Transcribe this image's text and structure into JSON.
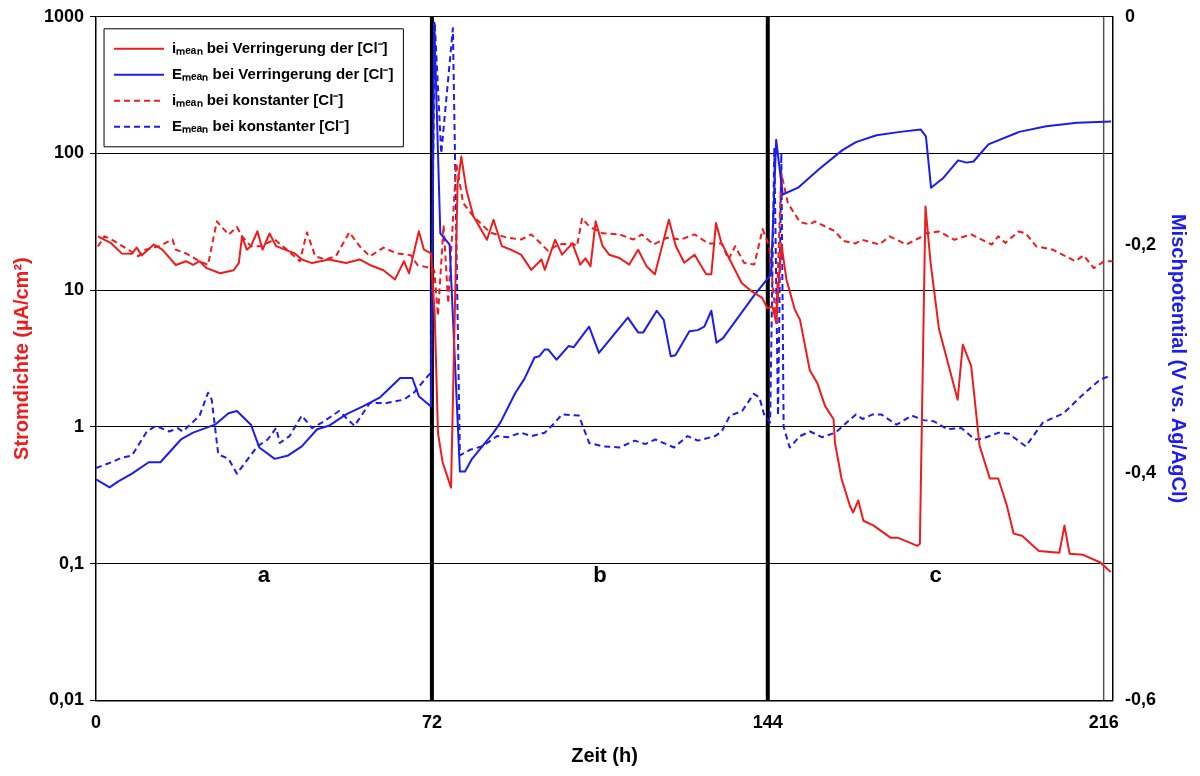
{
  "chart_data": {
    "type": "line",
    "xlabel": "Zeit (h)",
    "ylabel": "Stromdichte (µA/cm²)",
    "y2label": "Mischpotential (V vs. Ag/AgCl)",
    "xlim": [
      0,
      218
    ],
    "xticks": [
      0,
      72,
      144,
      216
    ],
    "ylim": [
      0.01,
      1000
    ],
    "yticks": [
      {
        "value": 0.01,
        "label": "0,01"
      },
      {
        "value": 0.1,
        "label": "0,1"
      },
      1,
      10,
      100,
      1000
    ],
    "y2lim": [
      -0.6,
      0
    ],
    "y2ticks": [
      {
        "value": -0.6,
        "label": "-0,6"
      },
      {
        "value": -0.4,
        "label": "-0,4"
      },
      {
        "value": -0.2,
        "label": "-0,2"
      },
      0
    ],
    "log": "y",
    "grid": "y",
    "legend": "top left",
    "ref_lines": [
      {
        "axis": "x",
        "value": 72,
        "color": "#000000"
      },
      {
        "axis": "x",
        "value": 144,
        "color": "#000000"
      },
      {
        "axis": "x",
        "value": 216,
        "color": "#555555"
      }
    ],
    "annotations": [
      "a",
      "b",
      "c"
    ],
    "series": [
      {
        "name": "iₘₑₐₙ bei Verringerung der [Cl⁻]",
        "color": "#ee1c1c",
        "line_style": "solid",
        "x": [
          0.4,
          3.3,
          5.5,
          7.7,
          8.7,
          9.8,
          12.4,
          14.2,
          17.1,
          19.3,
          20.8,
          22.2,
          23.7,
          26.6,
          29.5,
          30.6,
          31.3,
          32.3,
          33.2,
          34.6,
          35.7,
          37.2,
          38.6,
          40.5,
          42.6,
          44.1,
          46.3,
          49.9,
          53.6,
          56.5,
          58.7,
          61.6,
          64.1,
          66,
          67.1,
          69.2,
          70.3,
          71.8,
          72.6,
          73.3,
          74.3,
          76.1,
          77.5,
          78.3,
          79.4,
          80.9,
          83.8,
          85.2,
          87.0,
          88.9,
          91.1,
          93.3,
          95.5,
          96.2,
          98.4,
          99.9,
          102.1,
          103.8,
          104.9,
          106.0,
          107.1,
          108.6,
          110.0,
          112.2,
          114.3,
          116.2,
          118.0,
          119.8,
          122.8,
          124.3,
          126.1,
          128.3,
          130.8,
          131.9,
          132.9,
          134.0,
          136.2,
          138.4,
          140.6,
          142.8,
          143.9,
          145.0,
          145.8,
          146.9,
          148.0,
          149.8,
          150.9,
          153.0,
          154.6,
          156.3,
          158.1,
          158.4,
          159.8,
          161.6,
          162.3,
          163.4,
          164.5,
          166.7,
          170.3,
          171.8,
          176.1,
          176.6,
          177.8,
          178.9,
          180.7,
          184.7,
          185.8,
          187.6,
          189.4,
          191.6,
          193.4,
          195.2,
          196.7,
          198.5,
          202.1,
          206.5,
          207.6,
          208.7,
          211.6,
          215.3,
          217.5
        ],
        "values": [
          24.8,
          22,
          18.6,
          18.5,
          20.5,
          18,
          21.6,
          19.8,
          15.3,
          16.3,
          15.3,
          16.3,
          14.5,
          13.3,
          14,
          15.8,
          24.8,
          19.8,
          21,
          27,
          19.8,
          26,
          21,
          19.8,
          18.6,
          16.8,
          15.8,
          16.8,
          15.8,
          16.8,
          15.3,
          14,
          12,
          16.3,
          13.3,
          27,
          19.8,
          18.6,
          6.5,
          0.9,
          0.55,
          0.36,
          60,
          95,
          54,
          34.7,
          23.4,
          32.8,
          21,
          19.8,
          18.2,
          14.1,
          16.8,
          14.1,
          23.4,
          18.2,
          22,
          15.4,
          17.1,
          15,
          31.9,
          21,
          18.2,
          17.2,
          15.4,
          19.8,
          15,
          13.1,
          32.8,
          21,
          15.9,
          18.2,
          13.1,
          13.1,
          31,
          22.5,
          15.9,
          11.3,
          9.8,
          8.8,
          7.4,
          7.6,
          5.8,
          22,
          12,
          7.2,
          6.1,
          2.6,
          2.1,
          1.42,
          1.14,
          0.77,
          0.42,
          0.265,
          0.237,
          0.29,
          0.206,
          0.19,
          0.155,
          0.155,
          0.135,
          0.14,
          41,
          15.9,
          5.2,
          1.58,
          4.0,
          2.8,
          0.73,
          0.42,
          0.42,
          0.27,
          0.166,
          0.16,
          0.124,
          0.12,
          0.19,
          0.118,
          0.116,
          0.102,
          0.087
        ]
      },
      {
        "name": "Eₘₑₐₙ bei Verringerung der [Cl⁻]",
        "color": "#1c1cee",
        "line_style": "solid",
        "axis": "y2",
        "x": [
          0,
          2.9,
          4.7,
          7.7,
          11.3,
          13.8,
          18.2,
          20.8,
          25.5,
          28.4,
          30.2,
          33.2,
          35,
          38.3,
          41.2,
          44.1,
          47.4,
          49.9,
          53.6,
          57.2,
          60.9,
          65.2,
          67.8,
          69.2,
          71.8,
          72.5,
          73.8,
          75.8,
          78,
          79.1,
          80.6,
          85.2,
          86.7,
          89.9,
          91.8,
          94,
          95,
          96.2,
          96.9,
          98.7,
          101.3,
          102.4,
          105.7,
          107.8,
          110.4,
          114,
          116.2,
          117.3,
          120.2,
          121.7,
          123.2,
          124.2,
          127.2,
          129,
          130.4,
          131.9,
          133,
          134.4,
          141,
          144.7,
          145.8,
          147.2,
          150.5,
          154.9,
          160,
          162.9,
          167.3,
          172.4,
          176.8,
          177.9,
          179,
          181.5,
          184.8,
          186.6,
          188.1,
          191.3,
          197.9,
          203.7,
          210.3,
          217.6
        ],
        "values": [
          -0.406,
          -0.413,
          -0.408,
          -0.401,
          -0.391,
          -0.391,
          -0.371,
          -0.365,
          -0.358,
          -0.348,
          -0.346,
          -0.358,
          -0.378,
          -0.388,
          -0.385,
          -0.377,
          -0.362,
          -0.359,
          -0.349,
          -0.342,
          -0.334,
          -0.317,
          -0.317,
          -0.333,
          -0.342,
          -0.005,
          -0.19,
          -0.2,
          -0.399,
          -0.399,
          -0.388,
          -0.365,
          -0.356,
          -0.33,
          -0.318,
          -0.299,
          -0.298,
          -0.292,
          -0.292,
          -0.301,
          -0.289,
          -0.29,
          -0.272,
          -0.295,
          -0.282,
          -0.264,
          -0.277,
          -0.277,
          -0.258,
          -0.266,
          -0.298,
          -0.297,
          -0.276,
          -0.275,
          -0.272,
          -0.258,
          -0.286,
          -0.282,
          -0.245,
          -0.226,
          -0.108,
          -0.156,
          -0.15,
          -0.134,
          -0.117,
          -0.11,
          -0.104,
          -0.101,
          -0.099,
          -0.105,
          -0.15,
          -0.142,
          -0.126,
          -0.128,
          -0.127,
          -0.112,
          -0.101,
          -0.096,
          -0.093,
          -0.092
        ]
      },
      {
        "name": "iₘₑₐₙ bei konstanter [Cl⁻]",
        "color": "#ee1c1c",
        "line_style": "dashed",
        "x": [
          0.4,
          1.8,
          3.3,
          6.2,
          9.1,
          10.6,
          13.5,
          16.4,
          17.1,
          19.3,
          21.5,
          24.0,
          25.9,
          28.4,
          30.2,
          31.3,
          33.2,
          35.3,
          38.3,
          41.2,
          43.7,
          45.2,
          47,
          49.2,
          51.4,
          54.3,
          56.5,
          58.7,
          61.6,
          64.5,
          67.5,
          68.9,
          71.8,
          72.5,
          73.3,
          74.5,
          75.5,
          77.2,
          78.7,
          80.9,
          84.5,
          88.2,
          91.1,
          93.3,
          94.8,
          96.9,
          99.1,
          102.1,
          103.1,
          104.2,
          105.7,
          108.6,
          112.2,
          115.2,
          117,
          119.5,
          122.4,
          125.4,
          128.3,
          131.2,
          134.1,
          135.6,
          137,
          138.9,
          141.1,
          142.9,
          144.3,
          145.8,
          146.9,
          148.3,
          150.9,
          153,
          154.1,
          158.4,
          160.2,
          162.8,
          164.2,
          167.9,
          170.1,
          173.7,
          176.6,
          177.7,
          180.7,
          184,
          187.6,
          192,
          193.4,
          194.9,
          197.8,
          199.3,
          201.5,
          205.1,
          209.9,
          211.7,
          213.9,
          216.1,
          217.9
        ],
        "values": [
          20.9,
          24.8,
          23.5,
          20.5,
          17.7,
          19.8,
          21,
          23.5,
          19.8,
          18.6,
          16.8,
          15.3,
          31.9,
          25.5,
          29,
          24.8,
          21,
          21,
          23.5,
          19.4,
          16.3,
          26.5,
          17.7,
          16.8,
          17.7,
          26.5,
          21,
          17.7,
          20.5,
          18.6,
          18,
          15.3,
          14.5,
          14,
          6.5,
          30,
          8,
          85,
          43.4,
          34.7,
          26.4,
          24.2,
          23.5,
          25.6,
          22.9,
          19.4,
          21.6,
          22,
          21,
          33.7,
          29.3,
          26.1,
          25.6,
          23.5,
          25.6,
          21.6,
          24.2,
          23.5,
          25.6,
          22,
          22,
          16.8,
          21,
          15.9,
          15.4,
          28,
          21,
          5.8,
          72,
          43.4,
          31.5,
          30.3,
          31.9,
          27,
          22.9,
          22,
          23.4,
          21.6,
          24.8,
          21.6,
          24.2,
          26.1,
          26.9,
          23.4,
          25.6,
          21.6,
          24.8,
          22.2,
          26.9,
          26.1,
          21,
          19.8,
          16.3,
          18,
          14.5,
          16.3,
          16.3
        ]
      },
      {
        "name": "Eₘₑₐₙ bei konstanter [Cl⁻]",
        "color": "#1c1cee",
        "line_style": "dashed",
        "axis": "y2",
        "x": [
          0,
          3.3,
          5.5,
          7.7,
          10.9,
          12.8,
          15.7,
          17.5,
          18.6,
          22.2,
          24,
          24.8,
          26.2,
          28.4,
          30.2,
          34.6,
          36.8,
          38.6,
          39.4,
          41.5,
          44.1,
          46.3,
          48.5,
          52.1,
          55.4,
          58.7,
          62.3,
          66,
          68.1,
          71.8,
          72.6,
          74,
          76.5,
          78,
          80.2,
          82.8,
          86,
          88.2,
          91.1,
          93.3,
          96.2,
          97.7,
          99.9,
          103.5,
          105.7,
          108.6,
          112.2,
          115.5,
          117.7,
          119.9,
          123.9,
          126.8,
          129,
          132.7,
          134.1,
          135.9,
          138.5,
          141,
          142.2,
          143.2,
          144.5,
          145.4,
          146.2,
          146.9,
          147.4,
          148.7,
          150.9,
          153.1,
          155.6,
          158.5,
          162.9,
          164.3,
          166.5,
          168.3,
          171.6,
          174.9,
          177.4,
          179.6,
          182.5,
          185.5,
          188.4,
          190.2,
          193.5,
          195.7,
          199.3,
          203,
          207.4,
          211.7,
          215.4,
          217.6
        ],
        "values": [
          -0.396,
          -0.391,
          -0.387,
          -0.385,
          -0.364,
          -0.359,
          -0.364,
          -0.361,
          -0.364,
          -0.35,
          -0.33,
          -0.336,
          -0.384,
          -0.388,
          -0.401,
          -0.377,
          -0.371,
          -0.361,
          -0.374,
          -0.368,
          -0.35,
          -0.361,
          -0.356,
          -0.346,
          -0.359,
          -0.339,
          -0.339,
          -0.336,
          -0.33,
          -0.312,
          -0.005,
          -0.12,
          -0.01,
          -0.385,
          -0.38,
          -0.377,
          -0.368,
          -0.369,
          -0.365,
          -0.368,
          -0.365,
          -0.359,
          -0.349,
          -0.35,
          -0.374,
          -0.377,
          -0.378,
          -0.372,
          -0.375,
          -0.371,
          -0.378,
          -0.368,
          -0.372,
          -0.368,
          -0.364,
          -0.35,
          -0.346,
          -0.331,
          -0.334,
          -0.349,
          -0.356,
          -0.115,
          -0.35,
          -0.12,
          -0.36,
          -0.378,
          -0.368,
          -0.364,
          -0.369,
          -0.365,
          -0.349,
          -0.353,
          -0.349,
          -0.349,
          -0.358,
          -0.35,
          -0.354,
          -0.355,
          -0.362,
          -0.361,
          -0.371,
          -0.37,
          -0.365,
          -0.366,
          -0.377,
          -0.356,
          -0.348,
          -0.331,
          -0.318,
          -0.315
        ]
      }
    ]
  }
}
